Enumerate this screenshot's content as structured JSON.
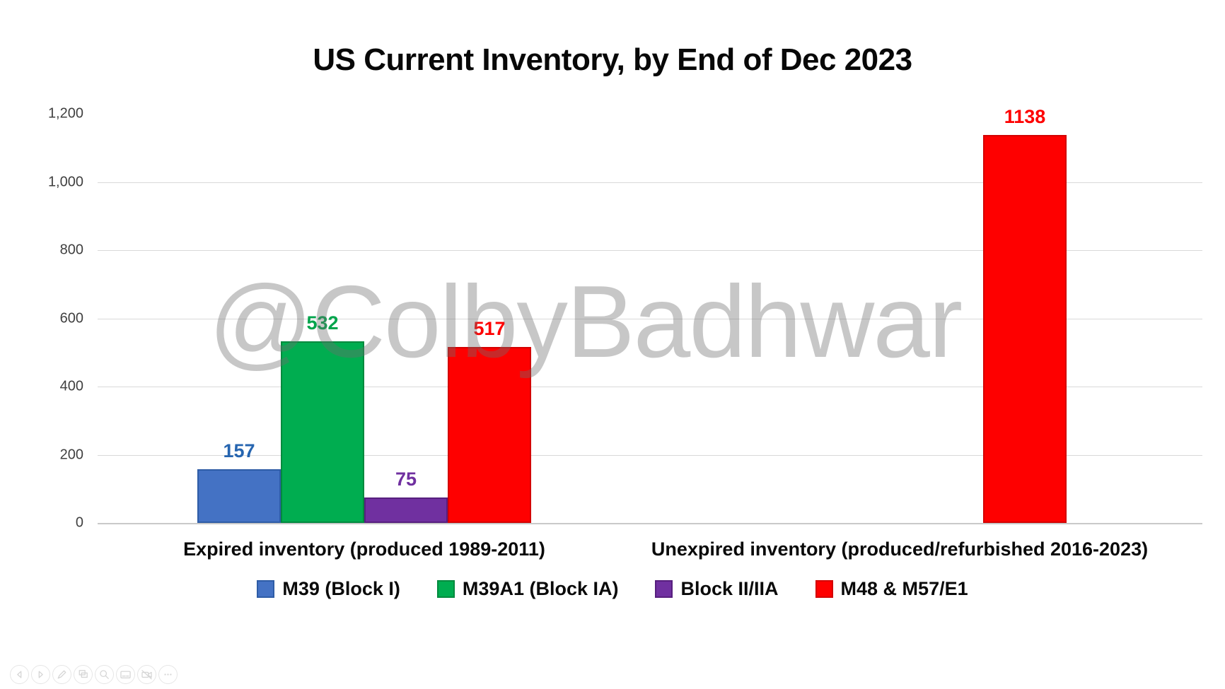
{
  "slide": {
    "watermark": "@ColbyBadhwar"
  },
  "chart_data": {
    "type": "bar",
    "title": "US Current Inventory, by End of Dec 2023",
    "categories": [
      "Expired inventory (produced 1989-2011)",
      "Unexpired inventory (produced/refurbished 2016-2023)"
    ],
    "series": [
      {
        "name": "M39 (Block I)",
        "color": "#4472c4",
        "border": "#2e5ca6",
        "label_color": "#2665b0",
        "values": [
          157,
          null
        ]
      },
      {
        "name": "M39A1 (Block IA)",
        "color": "#00ad50",
        "border": "#008a3e",
        "label_color": "#00a44b",
        "values": [
          532,
          null
        ]
      },
      {
        "name": "Block II/IIA",
        "color": "#7030a0",
        "border": "#571f7e",
        "label_color": "#7030a0",
        "values": [
          75,
          null
        ]
      },
      {
        "name": "M48 & M57/E1",
        "color": "#fe0000",
        "border": "#d40000",
        "label_color": "#fe0000",
        "values": [
          517,
          1138
        ]
      }
    ],
    "ylim": [
      0,
      1200
    ],
    "yticks": [
      0,
      200,
      400,
      600,
      800,
      1000,
      1200
    ],
    "ytick_labels": [
      "0",
      "200",
      "400",
      "600",
      "800",
      "1,000",
      "1,200"
    ],
    "grid": true,
    "legend_position": "bottom",
    "data_labels": true
  },
  "toolbar": {
    "items": [
      {
        "name": "previous-slide",
        "icon": "chevron-left-icon"
      },
      {
        "name": "next-slide",
        "icon": "chevron-right-icon"
      },
      {
        "name": "pen",
        "icon": "pen-icon"
      },
      {
        "name": "see-all-slides",
        "icon": "slides-grid-icon"
      },
      {
        "name": "zoom",
        "icon": "magnifier-icon"
      },
      {
        "name": "subtitles",
        "icon": "subtitles-icon"
      },
      {
        "name": "camera-toggle",
        "icon": "camera-off-icon"
      },
      {
        "name": "more-options",
        "icon": "ellipsis-icon"
      }
    ]
  }
}
